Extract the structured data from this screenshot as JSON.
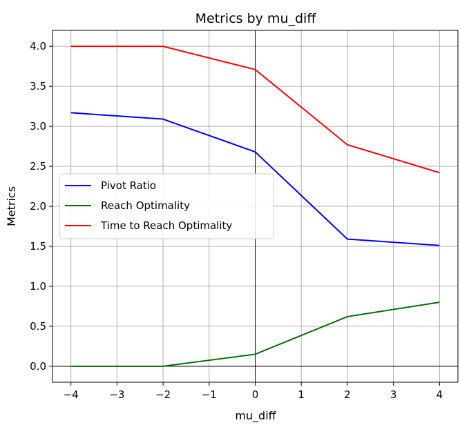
{
  "chart_data": {
    "type": "line",
    "title": "Metrics by mu_diff",
    "xlabel": "mu_diff",
    "ylabel": "Metrics",
    "x": [
      -4,
      -2,
      0,
      2,
      4
    ],
    "xlim": [
      -4.4,
      4.4
    ],
    "ylim": [
      -0.2,
      4.2
    ],
    "xticks": [
      -4,
      -3,
      -2,
      -1,
      0,
      1,
      2,
      3,
      4
    ],
    "xtick_labels": [
      "−4",
      "−3",
      "−2",
      "−1",
      "0",
      "1",
      "2",
      "3",
      "4"
    ],
    "yticks": [
      0.0,
      0.5,
      1.0,
      1.5,
      2.0,
      2.5,
      3.0,
      3.5,
      4.0
    ],
    "ytick_labels": [
      "0.0",
      "0.5",
      "1.0",
      "1.5",
      "2.0",
      "2.5",
      "3.0",
      "3.5",
      "4.0"
    ],
    "grid": true,
    "reference_lines": {
      "x": 0,
      "y": 0
    },
    "legend_position": "center-left",
    "series": [
      {
        "name": "Pivot Ratio",
        "color": "#0000ff",
        "values": [
          3.17,
          3.09,
          2.68,
          1.59,
          1.51
        ]
      },
      {
        "name": "Reach Optimality",
        "color": "#007000",
        "values": [
          0.0,
          0.0,
          0.15,
          0.62,
          0.8
        ]
      },
      {
        "name": "Time to Reach Optimality",
        "color": "#ff0000",
        "values": [
          4.0,
          4.0,
          3.71,
          2.77,
          2.42
        ]
      }
    ]
  }
}
